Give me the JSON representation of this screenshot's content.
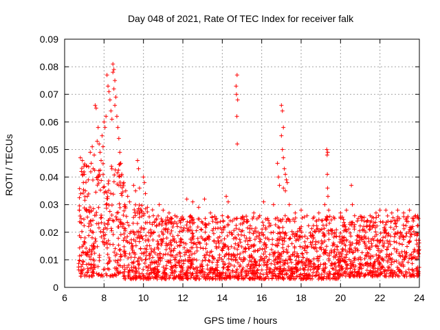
{
  "chart_data": {
    "type": "scatter",
    "title": "Day 048 of 2021, Rate Of TEC Index for receiver falk",
    "xlabel": "GPS time / hours",
    "ylabel": "ROTI / TECUs",
    "xlim": [
      6,
      24
    ],
    "ylim": [
      0,
      0.09
    ],
    "xticks": [
      "6",
      "8",
      "10",
      "12",
      "14",
      "16",
      "18",
      "20",
      "22",
      "24"
    ],
    "yticks": [
      "0",
      "0.01",
      "0.02",
      "0.03",
      "0.04",
      "0.05",
      "0.06",
      "0.07",
      "0.08",
      "0.09"
    ],
    "grid": true,
    "marker": "+",
    "color": "#ff0000",
    "series": [
      {
        "values": [
          [
            6.75,
            0.028
          ],
          [
            6.8,
            0.047
          ],
          [
            6.85,
            0.042
          ],
          [
            6.9,
            0.046
          ],
          [
            6.95,
            0.038
          ],
          [
            7.0,
            0.041
          ],
          [
            7.05,
            0.035
          ],
          [
            7.1,
            0.044
          ],
          [
            7.15,
            0.033
          ],
          [
            7.2,
            0.039
          ],
          [
            7.3,
            0.049
          ],
          [
            7.35,
            0.045
          ],
          [
            7.4,
            0.051
          ],
          [
            7.45,
            0.043
          ],
          [
            7.5,
            0.048
          ],
          [
            7.55,
            0.066
          ],
          [
            7.6,
            0.065
          ],
          [
            7.65,
            0.053
          ],
          [
            7.7,
            0.058
          ],
          [
            7.75,
            0.052
          ],
          [
            7.8,
            0.049
          ],
          [
            7.85,
            0.046
          ],
          [
            7.9,
            0.055
          ],
          [
            7.95,
            0.051
          ],
          [
            8.0,
            0.06
          ],
          [
            8.05,
            0.058
          ],
          [
            8.1,
            0.062
          ],
          [
            8.15,
            0.077
          ],
          [
            8.2,
            0.073
          ],
          [
            8.25,
            0.071
          ],
          [
            8.3,
            0.068
          ],
          [
            8.35,
            0.064
          ],
          [
            8.4,
            0.061
          ],
          [
            8.45,
            0.081
          ],
          [
            8.5,
            0.079
          ],
          [
            8.45,
            0.078
          ],
          [
            8.55,
            0.075
          ],
          [
            8.5,
            0.072
          ],
          [
            8.6,
            0.069
          ],
          [
            8.55,
            0.066
          ],
          [
            8.65,
            0.062
          ],
          [
            8.7,
            0.058
          ],
          [
            8.75,
            0.054
          ],
          [
            8.8,
            0.049
          ],
          [
            8.85,
            0.045
          ],
          [
            8.9,
            0.041
          ],
          [
            9.0,
            0.038
          ],
          [
            9.1,
            0.035
          ],
          [
            9.2,
            0.033
          ],
          [
            9.3,
            0.031
          ],
          [
            9.5,
            0.037
          ],
          [
            9.6,
            0.035
          ],
          [
            9.7,
            0.046
          ],
          [
            9.75,
            0.043
          ],
          [
            9.8,
            0.036
          ],
          [
            10.0,
            0.04
          ],
          [
            10.05,
            0.038
          ],
          [
            10.1,
            0.034
          ],
          [
            10.2,
            0.029
          ],
          [
            10.5,
            0.026
          ],
          [
            10.8,
            0.03
          ],
          [
            11.0,
            0.028
          ],
          [
            11.3,
            0.027
          ],
          [
            11.6,
            0.026
          ],
          [
            11.9,
            0.025
          ],
          [
            12.2,
            0.032
          ],
          [
            12.5,
            0.031
          ],
          [
            12.8,
            0.029
          ],
          [
            13.1,
            0.032
          ],
          [
            13.4,
            0.027
          ],
          [
            13.7,
            0.025
          ],
          [
            14.0,
            0.026
          ],
          [
            14.2,
            0.033
          ],
          [
            14.3,
            0.031
          ],
          [
            14.75,
            0.077
          ],
          [
            14.7,
            0.073
          ],
          [
            14.72,
            0.07
          ],
          [
            14.78,
            0.068
          ],
          [
            14.74,
            0.062
          ],
          [
            14.76,
            0.052
          ],
          [
            15.0,
            0.025
          ],
          [
            15.3,
            0.024
          ],
          [
            15.6,
            0.027
          ],
          [
            15.9,
            0.026
          ],
          [
            16.1,
            0.031
          ],
          [
            16.3,
            0.025
          ],
          [
            16.6,
            0.03
          ],
          [
            16.8,
            0.045
          ],
          [
            16.85,
            0.04
          ],
          [
            16.9,
            0.037
          ],
          [
            17.0,
            0.066
          ],
          [
            17.05,
            0.064
          ],
          [
            17.1,
            0.058
          ],
          [
            17.0,
            0.055
          ],
          [
            17.05,
            0.05
          ],
          [
            17.1,
            0.047
          ],
          [
            17.15,
            0.043
          ],
          [
            17.2,
            0.041
          ],
          [
            17.25,
            0.039
          ],
          [
            17.3,
            0.038
          ],
          [
            17.1,
            0.036
          ],
          [
            17.2,
            0.035
          ],
          [
            17.4,
            0.03
          ],
          [
            17.7,
            0.027
          ],
          [
            18.0,
            0.028
          ],
          [
            18.3,
            0.026
          ],
          [
            18.6,
            0.025
          ],
          [
            18.9,
            0.027
          ],
          [
            19.2,
            0.03
          ],
          [
            19.3,
            0.05
          ],
          [
            19.35,
            0.049
          ],
          [
            19.32,
            0.048
          ],
          [
            19.33,
            0.041
          ],
          [
            19.34,
            0.036
          ],
          [
            19.36,
            0.033
          ],
          [
            19.4,
            0.028
          ],
          [
            19.7,
            0.025
          ],
          [
            20.0,
            0.027
          ],
          [
            20.3,
            0.028
          ],
          [
            20.55,
            0.037
          ],
          [
            20.6,
            0.03
          ],
          [
            20.9,
            0.025
          ],
          [
            21.2,
            0.024
          ],
          [
            21.5,
            0.026
          ],
          [
            21.8,
            0.027
          ],
          [
            22.0,
            0.028
          ],
          [
            22.3,
            0.028
          ],
          [
            22.6,
            0.027
          ],
          [
            22.9,
            0.028
          ],
          [
            23.2,
            0.027
          ],
          [
            23.5,
            0.028
          ],
          [
            23.8,
            0.026
          ],
          [
            23.95,
            0.025
          ]
        ]
      }
    ],
    "dense_band": {
      "description_for_rendering": "",
      "segments": [
        {
          "x": [
            6.7,
            9.0
          ],
          "ymin": 0.004,
          "ymax": 0.045
        },
        {
          "x": [
            9.0,
            10.5
          ],
          "ymin": 0.003,
          "ymax": 0.03
        },
        {
          "x": [
            10.5,
            16.0
          ],
          "ymin": 0.003,
          "ymax": 0.026
        },
        {
          "x": [
            16.0,
            20.0
          ],
          "ymin": 0.003,
          "ymax": 0.026
        },
        {
          "x": [
            20.0,
            24.0
          ],
          "ymin": 0.004,
          "ymax": 0.026
        }
      ]
    }
  }
}
